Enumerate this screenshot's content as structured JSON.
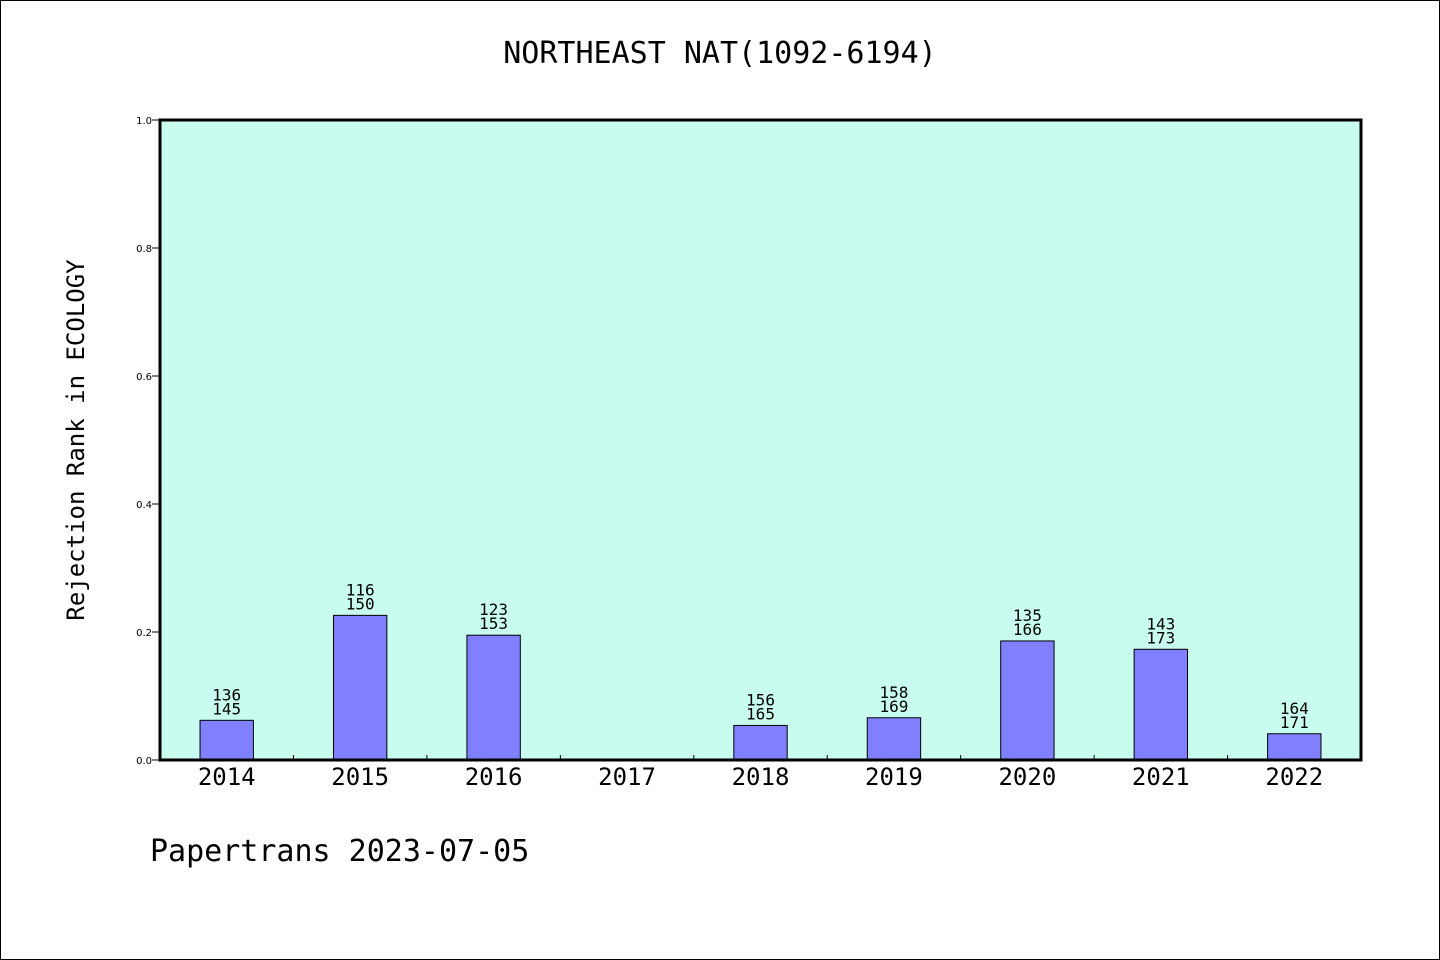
{
  "chart_data": {
    "type": "bar",
    "title": "NORTHEAST NAT(1092-6194)",
    "xlabel": "",
    "ylabel": "Rejection Rank in ECOLOGY",
    "ylim": [
      0,
      1.0
    ],
    "yticks": [
      "0.0",
      "0.2",
      "0.4",
      "0.6",
      "0.8",
      "1.0"
    ],
    "categories": [
      "2014",
      "2015",
      "2016",
      "2017",
      "2018",
      "2019",
      "2020",
      "2021",
      "2022"
    ],
    "values": [
      0.062,
      0.226,
      0.195,
      0,
      0.054,
      0.066,
      0.186,
      0.173,
      0.041
    ],
    "bar_labels": [
      [
        "136",
        "145"
      ],
      [
        "116",
        "150"
      ],
      [
        "123",
        "153"
      ],
      [
        "",
        ""
      ],
      [
        "156",
        "165"
      ],
      [
        "158",
        "169"
      ],
      [
        "135",
        "166"
      ],
      [
        "143",
        "173"
      ],
      [
        "164",
        "171"
      ]
    ],
    "grid": false,
    "colors": {
      "bar": "#8080ff",
      "plot_background": "#c8fcee",
      "axis": "#000000"
    }
  },
  "footer": "Papertrans 2023-07-05"
}
